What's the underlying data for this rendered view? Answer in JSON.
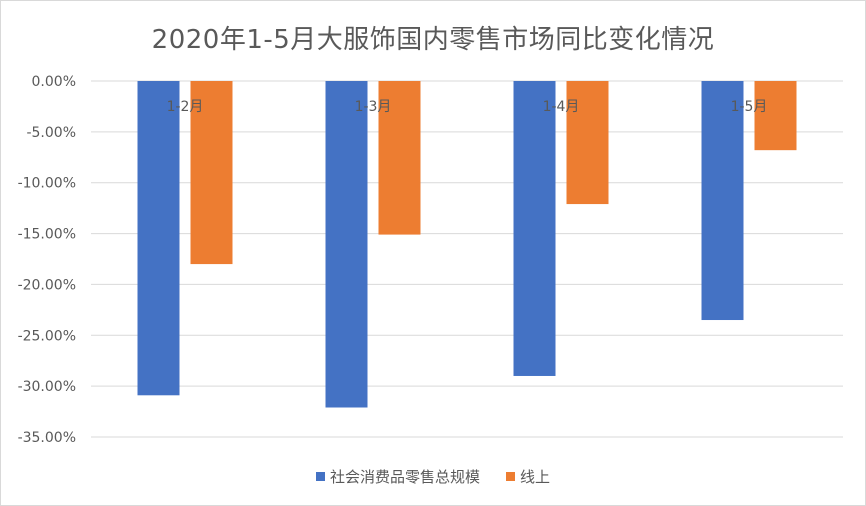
{
  "chart_data": {
    "type": "bar",
    "title": "2020年1-5月大服饰国内零售市场同比变化情况",
    "categories": [
      "1-2月",
      "1-3月",
      "1-4月",
      "1-5月"
    ],
    "series": [
      {
        "name": "社会消费品零售总规模",
        "values": [
          -30.9,
          -32.1,
          -29.0,
          -23.5
        ],
        "color": "#4472C4"
      },
      {
        "name": "线上",
        "values": [
          -18.0,
          -15.1,
          -12.1,
          -6.8
        ],
        "color": "#ED7D31"
      }
    ],
    "yticks": [
      "0.00%",
      "-5.00%",
      "-10.00%",
      "-15.00%",
      "-20.00%",
      "-25.00%",
      "-30.00%",
      "-35.00%"
    ],
    "ylim": [
      -35,
      0
    ],
    "grid": true,
    "legend_position": "bottom"
  }
}
